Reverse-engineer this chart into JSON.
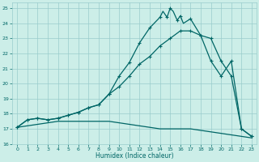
{
  "xlabel": "Humidex (Indice chaleur)",
  "bg_color": "#cceee8",
  "grid_color": "#99cccc",
  "line_color": "#006666",
  "xlim": [
    -0.5,
    23.5
  ],
  "ylim": [
    16,
    25.4
  ],
  "xticks": [
    0,
    1,
    2,
    3,
    4,
    5,
    6,
    7,
    8,
    9,
    10,
    11,
    12,
    13,
    14,
    15,
    16,
    17,
    18,
    19,
    20,
    21,
    22,
    23
  ],
  "yticks": [
    16,
    17,
    18,
    19,
    20,
    21,
    22,
    23,
    24,
    25
  ],
  "curve1_x": [
    0,
    1,
    2,
    3,
    4,
    5,
    6,
    7,
    8,
    9,
    10,
    11,
    12,
    13,
    14,
    14.3,
    14.7,
    15,
    15.3,
    15.7,
    16,
    16.3,
    17,
    18,
    19,
    20,
    21,
    22,
    23
  ],
  "curve1_y": [
    17.1,
    17.6,
    17.7,
    17.6,
    17.7,
    17.9,
    18.1,
    18.4,
    18.6,
    19.3,
    20.5,
    21.4,
    22.7,
    23.7,
    24.4,
    24.8,
    24.4,
    25.0,
    24.8,
    24.2,
    24.5,
    24.0,
    24.3,
    23.2,
    23.0,
    21.5,
    20.5,
    17.0,
    16.5
  ],
  "mark1_x": [
    0,
    1,
    2,
    3,
    4,
    5,
    6,
    7,
    8,
    9,
    10,
    11,
    12,
    13,
    14,
    14.7,
    15,
    15.7,
    16,
    17,
    18,
    19,
    20,
    21,
    22,
    23
  ],
  "mark1_y": [
    17.1,
    17.6,
    17.7,
    17.6,
    17.7,
    17.9,
    18.1,
    18.4,
    18.6,
    19.3,
    20.5,
    21.4,
    22.7,
    23.7,
    24.4,
    24.4,
    25.0,
    24.2,
    24.5,
    24.3,
    23.2,
    23.0,
    21.5,
    20.5,
    17.0,
    16.5
  ],
  "curve2_x": [
    0,
    1,
    2,
    3,
    4,
    5,
    6,
    7,
    8,
    9,
    10,
    11,
    12,
    13,
    14,
    15,
    16,
    17,
    18,
    19,
    20,
    21,
    22,
    23
  ],
  "curve2_y": [
    17.1,
    17.6,
    17.7,
    17.6,
    17.7,
    17.9,
    18.1,
    18.4,
    18.6,
    19.3,
    19.8,
    20.5,
    21.3,
    21.8,
    22.5,
    23.0,
    23.5,
    23.5,
    23.2,
    21.5,
    20.5,
    21.5,
    17.0,
    16.5
  ],
  "mark2_x": [
    0,
    1,
    2,
    3,
    4,
    5,
    6,
    7,
    8,
    9,
    10,
    11,
    12,
    13,
    14,
    15,
    16,
    17,
    18,
    19,
    20,
    21,
    22,
    23
  ],
  "mark2_y": [
    17.1,
    17.6,
    17.7,
    17.6,
    17.7,
    17.9,
    18.1,
    18.4,
    18.6,
    19.3,
    19.8,
    20.5,
    21.3,
    21.8,
    22.5,
    23.0,
    23.5,
    23.5,
    23.2,
    21.5,
    20.5,
    21.5,
    17.0,
    16.5
  ],
  "curve3_x": [
    0,
    1,
    2,
    3,
    4,
    5,
    6,
    7,
    8,
    9,
    10,
    11,
    12,
    13,
    14,
    15,
    16,
    17,
    18,
    19,
    20,
    21,
    22,
    23
  ],
  "curve3_y": [
    17.1,
    17.2,
    17.3,
    17.4,
    17.5,
    17.5,
    17.5,
    17.5,
    17.5,
    17.5,
    17.4,
    17.3,
    17.2,
    17.1,
    17.0,
    17.0,
    17.0,
    17.0,
    16.9,
    16.8,
    16.7,
    16.6,
    16.5,
    16.4
  ]
}
